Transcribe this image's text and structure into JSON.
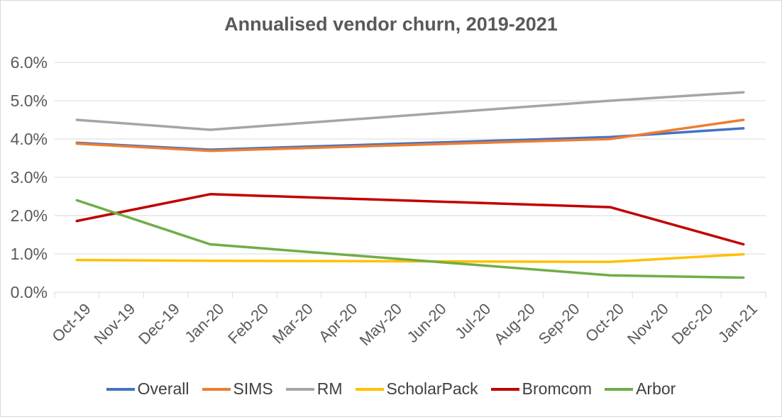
{
  "chart_data": {
    "type": "line",
    "title": "Annualised vendor churn, 2019-2021",
    "xlabel": "",
    "ylabel": "",
    "categories": [
      "Oct-19",
      "Nov-19",
      "Dec-19",
      "Jan-20",
      "Feb-20",
      "Mar-20",
      "Apr-20",
      "May-20",
      "Jun-20",
      "Jul-20",
      "Aug-20",
      "Sep-20",
      "Oct-20",
      "Nov-20",
      "Dec-20",
      "Jan-21"
    ],
    "y_ticks": [
      "0.0%",
      "1.0%",
      "2.0%",
      "3.0%",
      "4.0%",
      "5.0%",
      "6.0%"
    ],
    "ylim": [
      0,
      6
    ],
    "y_unit": "%",
    "grid": true,
    "legend_position": "bottom",
    "series": [
      {
        "name": "Overall",
        "color": "#4472c4",
        "points": [
          [
            "Oct-19",
            3.9
          ],
          [
            "Jan-20",
            3.72
          ],
          [
            "Oct-20",
            4.05
          ],
          [
            "Jan-21",
            4.28
          ]
        ]
      },
      {
        "name": "SIMS",
        "color": "#ed7d31",
        "points": [
          [
            "Oct-19",
            3.88
          ],
          [
            "Jan-20",
            3.69
          ],
          [
            "Oct-20",
            4.0
          ],
          [
            "Jan-21",
            4.5
          ]
        ]
      },
      {
        "name": "RM",
        "color": "#a5a5a5",
        "points": [
          [
            "Oct-19",
            4.5
          ],
          [
            "Jan-20",
            4.24
          ],
          [
            "Oct-20",
            5.0
          ],
          [
            "Jan-21",
            5.22
          ]
        ]
      },
      {
        "name": "ScholarPack",
        "color": "#ffc000",
        "points": [
          [
            "Oct-19",
            0.84
          ],
          [
            "Jan-20",
            0.82
          ],
          [
            "Oct-20",
            0.79
          ],
          [
            "Jan-21",
            0.99
          ]
        ]
      },
      {
        "name": "Bromcom",
        "color": "#c00000",
        "points": [
          [
            "Oct-19",
            1.86
          ],
          [
            "Jan-20",
            2.56
          ],
          [
            "Oct-20",
            2.22
          ],
          [
            "Jan-21",
            1.25
          ]
        ]
      },
      {
        "name": "Arbor",
        "color": "#70ad47",
        "points": [
          [
            "Oct-19",
            2.4
          ],
          [
            "Jan-20",
            1.25
          ],
          [
            "Oct-20",
            0.44
          ],
          [
            "Jan-21",
            0.38
          ]
        ]
      }
    ]
  }
}
